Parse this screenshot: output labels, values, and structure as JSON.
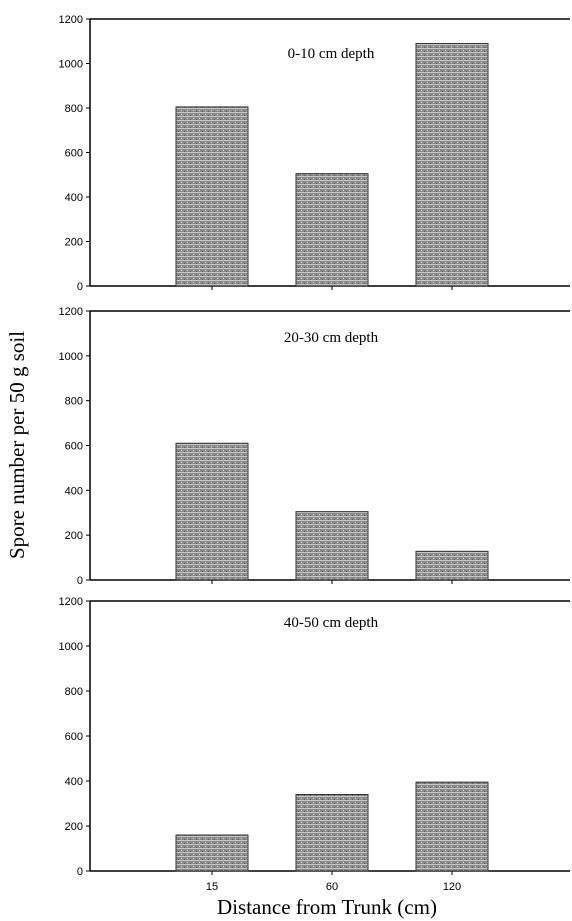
{
  "figure": {
    "ylabel": "Spore number per 50 g soil",
    "xlabel": "Distance from Trunk (cm)"
  },
  "chart_data": [
    {
      "type": "bar",
      "title": "0-10 cm depth",
      "categories": [
        "15",
        "60",
        "120"
      ],
      "values": [
        805,
        505,
        1090
      ],
      "ylim": [
        0,
        1200
      ],
      "yticks": [
        "0",
        "200",
        "400",
        "600",
        "800",
        "1000",
        "1200"
      ],
      "grid": false
    },
    {
      "type": "bar",
      "title": "20-30 cm depth",
      "categories": [
        "15",
        "60",
        "120"
      ],
      "values": [
        610,
        305,
        128
      ],
      "ylim": [
        0,
        1200
      ],
      "yticks": [
        "0",
        "200",
        "400",
        "600",
        "800",
        "1000",
        "1200"
      ],
      "grid": false
    },
    {
      "type": "bar",
      "title": "40-50 cm depth",
      "categories": [
        "15",
        "60",
        "120"
      ],
      "values": [
        160,
        340,
        395
      ],
      "ylim": [
        0,
        1200
      ],
      "yticks": [
        "0",
        "200",
        "400",
        "600",
        "800",
        "1000",
        "1200"
      ],
      "xticks": [
        "15",
        "60",
        "120"
      ],
      "grid": false
    }
  ],
  "colors": {
    "bar_fill": "#8a8a8a",
    "bar_stroke": "#333333",
    "axis": "#000000"
  }
}
